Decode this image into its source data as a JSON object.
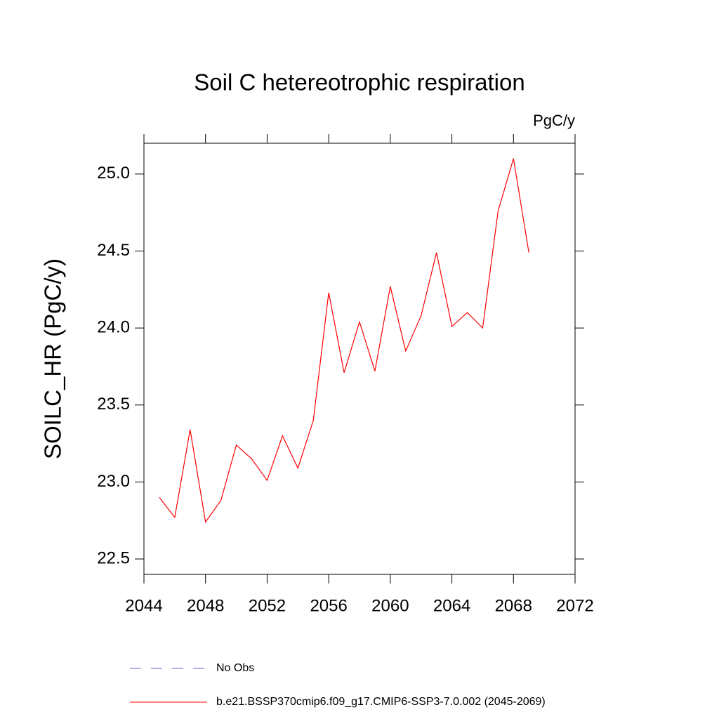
{
  "chart_data": {
    "type": "line",
    "title": "Soil C hetereotrophic respiration",
    "units": "PgC/y",
    "y_label": "SOILC_HR  (PgC/y)",
    "x": [
      2045,
      2046,
      2047,
      2048,
      2049,
      2050,
      2051,
      2052,
      2053,
      2054,
      2055,
      2056,
      2057,
      2058,
      2059,
      2060,
      2061,
      2062,
      2063,
      2064,
      2065,
      2066,
      2067,
      2068,
      2069
    ],
    "series": [
      {
        "name": "No Obs",
        "color": "#6a5acd",
        "dash": true,
        "values": [
          null,
          null,
          null,
          null,
          null,
          null,
          null,
          null,
          null,
          null,
          null,
          null,
          null,
          null,
          null,
          null,
          null,
          null,
          null,
          null,
          null,
          null,
          null,
          null,
          null
        ]
      },
      {
        "name": "b.e21.BSSP370cmip6.f09_g17.CMIP6-SSP3-7.0.002 (2045-2069)",
        "color": "#ff0000",
        "dash": false,
        "values": [
          22.9,
          22.77,
          23.34,
          22.74,
          22.88,
          23.24,
          23.15,
          23.01,
          23.3,
          23.09,
          23.4,
          24.23,
          23.71,
          24.04,
          23.72,
          24.27,
          23.85,
          24.08,
          24.49,
          24.01,
          24.1,
          24.0,
          24.76,
          25.1,
          24.49
        ]
      }
    ],
    "xlim": [
      2044,
      2072
    ],
    "xticks": [
      2044,
      2048,
      2052,
      2056,
      2060,
      2064,
      2068,
      2072
    ],
    "ylim": [
      22.4,
      25.2
    ],
    "yticks": [
      22.5,
      {
        "value": 23,
        "label": "23.0"
      },
      23.5,
      {
        "value": 24,
        "label": "24.0"
      },
      24.5,
      {
        "value": 25,
        "label": "25.0"
      }
    ],
    "grid": false,
    "legend": "bottom"
  }
}
